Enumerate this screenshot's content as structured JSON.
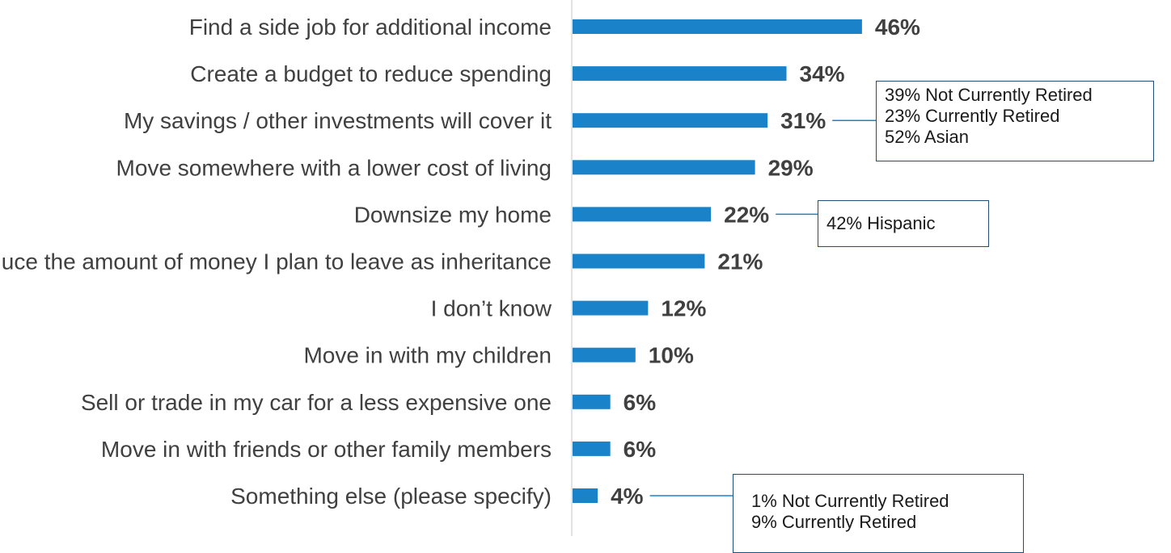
{
  "chart_data": {
    "type": "bar",
    "orientation": "horizontal",
    "categories": [
      "Find a side job for additional income",
      "Create a budget to reduce spending",
      "My savings / other investments will cover it",
      "Move somewhere with a lower cost of living",
      "Downsize my home",
      "Reduce the amount of money I plan to leave as inheritance",
      "I don’t know",
      "Move in with my children",
      "Sell or trade in my car for a less expensive one",
      "Move in with friends or other family members",
      "Something else (please specify)"
    ],
    "values": [
      46,
      34,
      31,
      29,
      22,
      21,
      12,
      10,
      6,
      6,
      4
    ],
    "value_labels": [
      "46%",
      "34%",
      "31%",
      "29%",
      "22%",
      "21%",
      "12%",
      "10%",
      "6%",
      "6%",
      "4%"
    ],
    "bar_color": "#1a82c9",
    "grid": false,
    "xlim": [
      0,
      100
    ],
    "annotations": [
      {
        "category_index": 2,
        "lines": [
          "39% Not Currently Retired",
          "23% Currently Retired",
          "52% Asian"
        ]
      },
      {
        "category_index": 4,
        "lines": [
          "42% Hispanic"
        ]
      },
      {
        "category_index": 10,
        "lines": [
          "1% Not Currently Retired",
          "9% Currently Retired"
        ]
      }
    ]
  }
}
